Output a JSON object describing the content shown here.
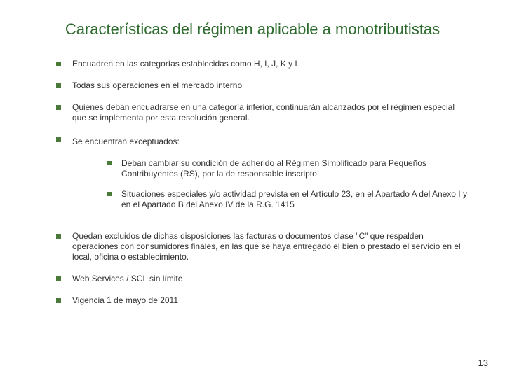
{
  "title": "Características del régimen aplicable a monotributistas",
  "colors": {
    "title_color": "#2e6b2e",
    "bullet_color": "#4a7a3a",
    "text_color": "#333333",
    "background": "#ffffff"
  },
  "typography": {
    "title_fontsize": 22,
    "body_fontsize": 12,
    "font_family": "Verdana"
  },
  "bullets": [
    "Encuadren en las categorías establecidas como H, I, J, K y L",
    "Todas sus operaciones en el mercado interno",
    "Quienes deban encuadrarse en una categoría inferior, continuarán alcanzados por el régimen especial que se implementa por esta resolución general.",
    "Se encuentran exceptuados:",
    "Quedan excluidos de dichas disposiciones las facturas o documentos clase \"C\" que respalden operaciones con consumidores finales, en las que se haya entregado el bien o prestado el servicio en el local, oficina o establecimiento.",
    "Web Services / SCL sin límite",
    "Vigencia 1 de mayo de 2011"
  ],
  "sub_bullets": [
    "Deban cambiar su condición de adherido al Régimen Simplificado para Pequeños Contribuyentes (RS), por la de responsable inscripto",
    "Situaciones especiales y/o actividad prevista en el Artículo 23, en el Apartado A del Anexo I y en el Apartado B del Anexo IV de la R.G. 1415"
  ],
  "page_number": "13"
}
